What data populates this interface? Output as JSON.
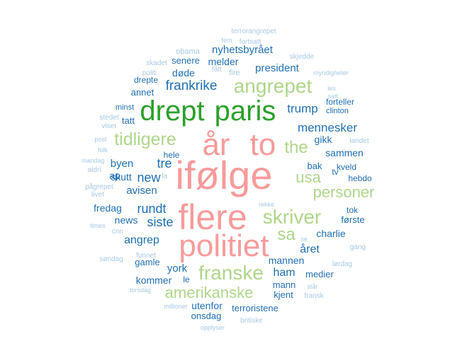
{
  "colors": {
    "pink": "#f79b9b",
    "green": "#2aa02a",
    "lightgreen": "#aed68a",
    "blue": "#1f6fb2",
    "lightblue": "#a9c8e4"
  },
  "words": [
    {
      "text": "ifølge",
      "color": "pink"
    },
    {
      "text": "flere",
      "color": "pink"
    },
    {
      "text": "politiet",
      "color": "pink"
    },
    {
      "text": "år",
      "color": "pink"
    },
    {
      "text": "to",
      "color": "pink"
    },
    {
      "text": "drept",
      "color": "green"
    },
    {
      "text": "paris",
      "color": "green"
    },
    {
      "text": "angrepet",
      "color": "lightgreen"
    },
    {
      "text": "tidligere",
      "color": "lightgreen"
    },
    {
      "text": "the",
      "color": "lightgreen"
    },
    {
      "text": "usa",
      "color": "lightgreen"
    },
    {
      "text": "personer",
      "color": "lightgreen"
    },
    {
      "text": "skriver",
      "color": "lightgreen"
    },
    {
      "text": "sa",
      "color": "lightgreen"
    },
    {
      "text": "franske",
      "color": "lightgreen"
    },
    {
      "text": "amerikanske",
      "color": "lightgreen"
    },
    {
      "text": "frankrike",
      "color": "blue"
    },
    {
      "text": "trump",
      "color": "blue"
    },
    {
      "text": "mennesker",
      "color": "blue"
    },
    {
      "text": "nyhetsbyrået",
      "color": "blue"
    },
    {
      "text": "melder",
      "color": "blue"
    },
    {
      "text": "president",
      "color": "blue"
    },
    {
      "text": "senere",
      "color": "blue"
    },
    {
      "text": "døde",
      "color": "blue"
    },
    {
      "text": "drepte",
      "color": "blue"
    },
    {
      "text": "annet",
      "color": "blue"
    },
    {
      "text": "minst",
      "color": "blue"
    },
    {
      "text": "tatt",
      "color": "blue"
    },
    {
      "text": "forteller",
      "color": "blue"
    },
    {
      "text": "clinton",
      "color": "blue"
    },
    {
      "text": "gikk",
      "color": "blue"
    },
    {
      "text": "sammen",
      "color": "blue"
    },
    {
      "text": "new",
      "color": "blue"
    },
    {
      "text": "tre",
      "color": "blue"
    },
    {
      "text": "byen",
      "color": "blue"
    },
    {
      "text": "skutt",
      "color": "blue"
    },
    {
      "text": "ap",
      "color": "blue"
    },
    {
      "text": "avisen",
      "color": "blue"
    },
    {
      "text": "bak",
      "color": "blue"
    },
    {
      "text": "tv",
      "color": "blue"
    },
    {
      "text": "kveld",
      "color": "blue"
    },
    {
      "text": "hebdo",
      "color": "blue"
    },
    {
      "text": "fredag",
      "color": "blue"
    },
    {
      "text": "rundt",
      "color": "blue"
    },
    {
      "text": "news",
      "color": "blue"
    },
    {
      "text": "siste",
      "color": "blue"
    },
    {
      "text": "tok",
      "color": "blue"
    },
    {
      "text": "første",
      "color": "blue"
    },
    {
      "text": "charlie",
      "color": "blue"
    },
    {
      "text": "angrep",
      "color": "blue"
    },
    {
      "text": "året",
      "color": "blue"
    },
    {
      "text": "året",
      "color": "blue"
    },
    {
      "text": "gamle",
      "color": "blue"
    },
    {
      "text": "york",
      "color": "blue"
    },
    {
      "text": "mannen",
      "color": "blue"
    },
    {
      "text": "ham",
      "color": "blue"
    },
    {
      "text": "medier",
      "color": "blue"
    },
    {
      "text": "kommer",
      "color": "blue"
    },
    {
      "text": "le",
      "color": "blue"
    },
    {
      "text": "mann",
      "color": "blue"
    },
    {
      "text": "kjent",
      "color": "blue"
    },
    {
      "text": "utenfor",
      "color": "blue"
    },
    {
      "text": "terroristene",
      "color": "blue"
    },
    {
      "text": "onsdag",
      "color": "blue"
    },
    {
      "text": "hele",
      "color": "blue"
    },
    {
      "text": "terrorangrepet",
      "color": "lightblue"
    },
    {
      "text": "fem",
      "color": "lightblue"
    },
    {
      "text": "fortsatt",
      "color": "lightblue"
    },
    {
      "text": "obama",
      "color": "lightblue"
    },
    {
      "text": "skjedde",
      "color": "lightblue"
    },
    {
      "text": "skadet",
      "color": "lightblue"
    },
    {
      "text": "politi",
      "color": "lightblue"
    },
    {
      "text": "fått",
      "color": "lightblue"
    },
    {
      "text": "fire",
      "color": "lightblue"
    },
    {
      "text": "myndigheter",
      "color": "lightblue"
    },
    {
      "text": "les",
      "color": "lightblue"
    },
    {
      "text": "satt",
      "color": "lightblue"
    },
    {
      "text": "stedet",
      "color": "lightblue"
    },
    {
      "text": "viser",
      "color": "lightblue"
    },
    {
      "text": "post",
      "color": "lightblue"
    },
    {
      "text": "folk",
      "color": "lightblue"
    },
    {
      "text": "landet",
      "color": "lightblue"
    },
    {
      "text": "mandag",
      "color": "lightblue"
    },
    {
      "text": "aldri",
      "color": "lightblue"
    },
    {
      "text": "la",
      "color": "lightblue"
    },
    {
      "text": "pågrepet",
      "color": "lightblue"
    },
    {
      "text": "livet",
      "color": "lightblue"
    },
    {
      "text": "rekke",
      "color": "lightblue"
    },
    {
      "text": "times",
      "color": "lightblue"
    },
    {
      "text": "cnn",
      "color": "lightblue"
    },
    {
      "text": "se",
      "color": "lightblue"
    },
    {
      "text": "gang",
      "color": "lightblue"
    },
    {
      "text": "søndag",
      "color": "lightblue"
    },
    {
      "text": "funnet",
      "color": "lightblue"
    },
    {
      "text": "lørdag",
      "color": "lightblue"
    },
    {
      "text": "torsdag",
      "color": "lightblue"
    },
    {
      "text": "står",
      "color": "lightblue"
    },
    {
      "text": "fransk",
      "color": "lightblue"
    },
    {
      "text": "millioner",
      "color": "lightblue"
    },
    {
      "text": "opplyser",
      "color": "lightblue"
    },
    {
      "text": "britiske",
      "color": "lightblue"
    }
  ]
}
